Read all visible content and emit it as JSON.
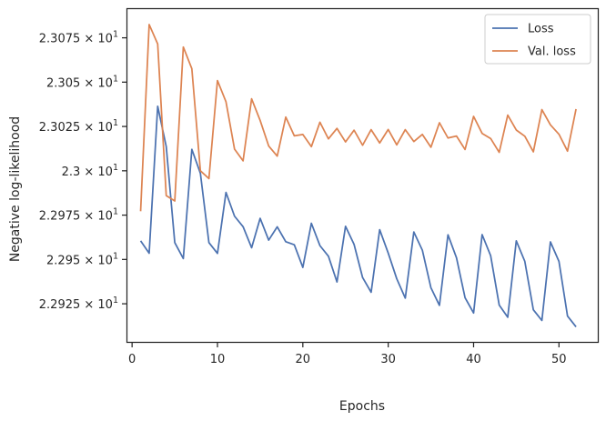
{
  "chart_data": {
    "type": "line",
    "title": "",
    "xlabel": "Epochs",
    "ylabel": "Negative log-likelihood",
    "xlim": [
      -0.55,
      54.55
    ],
    "ylim": [
      22.9035,
      23.0912
    ],
    "x_ticks": [
      {
        "value": 0,
        "label": "0"
      },
      {
        "value": 10,
        "label": "10"
      },
      {
        "value": 20,
        "label": "20"
      },
      {
        "value": 30,
        "label": "30"
      },
      {
        "value": 40,
        "label": "40"
      },
      {
        "value": 50,
        "label": "50"
      }
    ],
    "y_ticks": [
      {
        "value": 22.925,
        "mantissa": "2.2925",
        "exp": "1"
      },
      {
        "value": 22.95,
        "mantissa": "2.295",
        "exp": "1"
      },
      {
        "value": 22.975,
        "mantissa": "2.2975",
        "exp": "1"
      },
      {
        "value": 23.0,
        "mantissa": "2.3",
        "exp": "1"
      },
      {
        "value": 23.025,
        "mantissa": "2.3025",
        "exp": "1"
      },
      {
        "value": 23.05,
        "mantissa": "2.305",
        "exp": "1"
      },
      {
        "value": 23.075,
        "mantissa": "2.3075",
        "exp": "1"
      }
    ],
    "grid": false,
    "legend_position": "top-right",
    "x": [
      1,
      2,
      3,
      4,
      5,
      6,
      7,
      8,
      9,
      10,
      11,
      12,
      13,
      14,
      15,
      16,
      17,
      18,
      19,
      20,
      21,
      22,
      23,
      24,
      25,
      26,
      27,
      28,
      29,
      30,
      31,
      32,
      33,
      34,
      35,
      36,
      37,
      38,
      39,
      40,
      41,
      42,
      43,
      44,
      45,
      46,
      47,
      48,
      49,
      50,
      51,
      52
    ],
    "series": [
      {
        "name": "Loss",
        "color": "#4c72b0",
        "values": [
          22.9605,
          22.9535,
          23.0364,
          23.0137,
          22.9595,
          22.9505,
          23.0121,
          22.9986,
          22.9595,
          22.9534,
          22.9878,
          22.9744,
          22.9685,
          22.9566,
          22.9732,
          22.9609,
          22.9684,
          22.96,
          22.9583,
          22.9455,
          22.9704,
          22.9578,
          22.9518,
          22.9373,
          22.9687,
          22.9585,
          22.9398,
          22.9315,
          22.9668,
          22.9536,
          22.9391,
          22.9282,
          22.9655,
          22.9552,
          22.9341,
          22.9241,
          22.9639,
          22.9509,
          22.9284,
          22.9198,
          22.964,
          22.9521,
          22.9243,
          22.9174,
          22.9605,
          22.9489,
          22.9216,
          22.9156,
          22.9599,
          22.9489,
          22.9181,
          22.912
        ]
      },
      {
        "name": "Val. loss",
        "color": "#dd8452",
        "values": [
          22.9772,
          23.0825,
          23.0715,
          22.986,
          22.983,
          23.0698,
          23.0576,
          23.0,
          22.9956,
          23.0509,
          23.0389,
          23.0122,
          23.0056,
          23.0406,
          23.0284,
          23.014,
          23.0083,
          23.0303,
          23.0197,
          23.0205,
          23.0136,
          23.0274,
          23.018,
          23.0239,
          23.0163,
          23.0229,
          23.0144,
          23.0232,
          23.0157,
          23.0233,
          23.0146,
          23.0232,
          23.0165,
          23.0205,
          23.0133,
          23.0271,
          23.0185,
          23.0196,
          23.012,
          23.0307,
          23.0211,
          23.0182,
          23.0104,
          23.0314,
          23.023,
          23.0195,
          23.0107,
          23.0345,
          23.0259,
          23.0206,
          23.0111,
          23.0348
        ]
      }
    ]
  }
}
